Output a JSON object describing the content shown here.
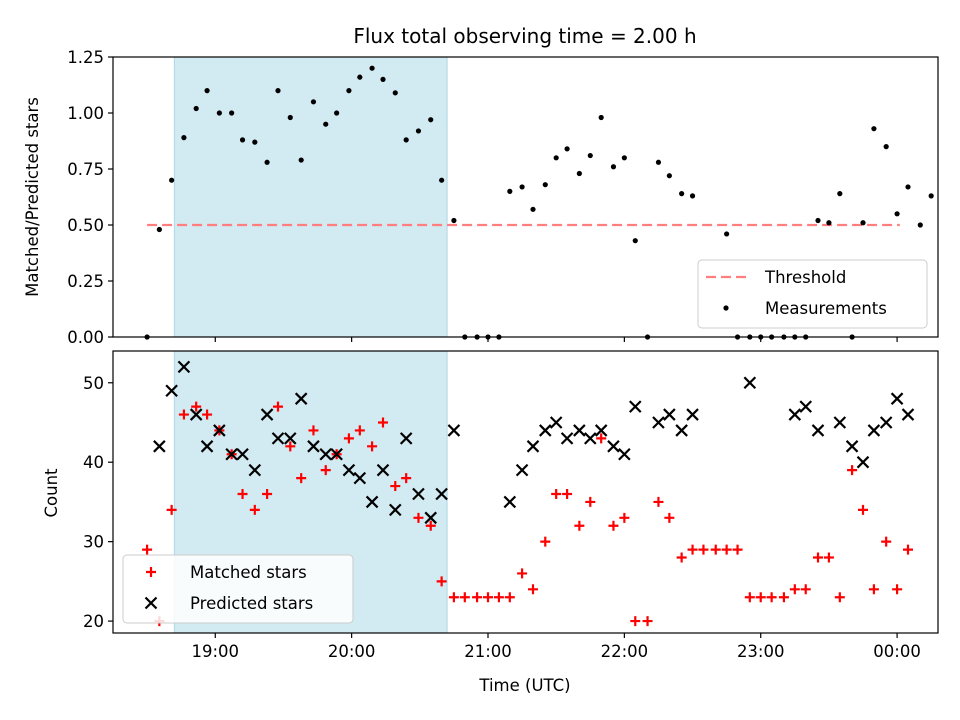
{
  "chart_data": [
    {
      "type": "scatter",
      "title": "Flux total observing time = 2.00 h",
      "xlabel": "",
      "ylabel": "Matched/Predicted stars",
      "x_unit": "hours (UTC)",
      "xlim": [
        18.25,
        24.3
      ],
      "ylim": [
        0.0,
        1.25
      ],
      "x_tick_labels": [
        "",
        "",
        "",
        "",
        "",
        ""
      ],
      "y_ticks": [
        0.0,
        0.25,
        0.5,
        0.75,
        1.0,
        1.25
      ],
      "y_tick_labels": [
        "0.00",
        "0.25",
        "0.50",
        "0.75",
        "1.00",
        "1.25"
      ],
      "shaded_region": {
        "x": [
          18.7,
          20.7
        ],
        "color": "#add8e6"
      },
      "threshold": {
        "name": "Threshold",
        "value": 0.5,
        "x": [
          18.5,
          24.02
        ],
        "color": "#ff7f7f",
        "style": "dashed"
      },
      "legend": {
        "position": "lower-right",
        "entries": [
          "Threshold",
          "Measurements"
        ]
      },
      "series": [
        {
          "name": "Measurements",
          "color": "#000000",
          "marker": "dot",
          "points": [
            [
              18.5,
              0.0
            ],
            [
              18.59,
              0.48
            ],
            [
              18.68,
              0.7
            ],
            [
              18.77,
              0.89
            ],
            [
              18.86,
              1.02
            ],
            [
              18.94,
              1.1
            ],
            [
              19.03,
              1.0
            ],
            [
              19.12,
              1.0
            ],
            [
              19.2,
              0.88
            ],
            [
              19.29,
              0.87
            ],
            [
              19.38,
              0.78
            ],
            [
              19.46,
              1.1
            ],
            [
              19.55,
              0.98
            ],
            [
              19.63,
              0.79
            ],
            [
              19.72,
              1.05
            ],
            [
              19.81,
              0.95
            ],
            [
              19.89,
              1.0
            ],
            [
              19.98,
              1.1
            ],
            [
              20.06,
              1.16
            ],
            [
              20.15,
              1.2
            ],
            [
              20.23,
              1.15
            ],
            [
              20.32,
              1.09
            ],
            [
              20.4,
              0.88
            ],
            [
              20.49,
              0.92
            ],
            [
              20.58,
              0.97
            ],
            [
              20.66,
              0.7
            ],
            [
              20.75,
              0.52
            ],
            [
              20.83,
              0.0
            ],
            [
              20.92,
              0.0
            ],
            [
              21.0,
              0.0
            ],
            [
              21.08,
              0.0
            ],
            [
              21.16,
              0.65
            ],
            [
              21.25,
              0.67
            ],
            [
              21.33,
              0.57
            ],
            [
              21.42,
              0.68
            ],
            [
              21.5,
              0.8
            ],
            [
              21.58,
              0.84
            ],
            [
              21.67,
              0.73
            ],
            [
              21.75,
              0.81
            ],
            [
              21.83,
              0.98
            ],
            [
              21.92,
              0.76
            ],
            [
              22.0,
              0.8
            ],
            [
              22.08,
              0.43
            ],
            [
              22.17,
              0.0
            ],
            [
              22.25,
              0.78
            ],
            [
              22.33,
              0.72
            ],
            [
              22.42,
              0.64
            ],
            [
              22.5,
              0.63
            ],
            [
              22.83,
              0.0
            ],
            [
              22.92,
              0.0
            ],
            [
              23.0,
              0.0
            ],
            [
              23.08,
              0.0
            ],
            [
              23.17,
              0.0
            ],
            [
              23.25,
              0.0
            ],
            [
              23.33,
              0.0
            ],
            [
              23.42,
              0.52
            ],
            [
              23.5,
              0.51
            ],
            [
              23.58,
              0.64
            ],
            [
              23.67,
              0.0
            ],
            [
              23.75,
              0.51
            ],
            [
              23.83,
              0.93
            ],
            [
              23.92,
              0.85
            ],
            [
              24.0,
              0.55
            ],
            [
              24.08,
              0.67
            ],
            [
              24.17,
              0.5
            ],
            [
              24.25,
              0.63
            ],
            [
              22.75,
              0.46
            ]
          ]
        }
      ]
    },
    {
      "type": "scatter",
      "title": "",
      "xlabel": "Time (UTC)",
      "ylabel": "Count",
      "x_unit": "hours (UTC)",
      "xlim": [
        18.25,
        24.3
      ],
      "ylim": [
        18.5,
        54.0
      ],
      "x_ticks": [
        19,
        20,
        21,
        22,
        23,
        24
      ],
      "x_tick_labels": [
        "19:00",
        "20:00",
        "21:00",
        "22:00",
        "23:00",
        "00:00"
      ],
      "y_ticks": [
        20,
        30,
        40,
        50
      ],
      "y_tick_labels": [
        "20",
        "30",
        "40",
        "50"
      ],
      "shaded_region": {
        "x": [
          18.7,
          20.7
        ],
        "color": "#add8e6"
      },
      "legend": {
        "position": "lower-left",
        "entries": [
          "Matched stars",
          "Predicted stars"
        ]
      },
      "series": [
        {
          "name": "Matched stars",
          "color": "#ff0000",
          "marker": "plus",
          "points": [
            [
              18.5,
              29
            ],
            [
              18.59,
              20
            ],
            [
              18.68,
              34
            ],
            [
              18.77,
              46
            ],
            [
              18.86,
              47
            ],
            [
              18.94,
              46
            ],
            [
              19.03,
              44
            ],
            [
              19.12,
              41
            ],
            [
              19.2,
              36
            ],
            [
              19.29,
              34
            ],
            [
              19.38,
              36
            ],
            [
              19.46,
              47
            ],
            [
              19.55,
              42
            ],
            [
              19.63,
              38
            ],
            [
              19.72,
              44
            ],
            [
              19.81,
              39
            ],
            [
              19.89,
              41
            ],
            [
              19.98,
              43
            ],
            [
              20.06,
              44
            ],
            [
              20.15,
              42
            ],
            [
              20.23,
              45
            ],
            [
              20.32,
              37
            ],
            [
              20.4,
              38
            ],
            [
              20.49,
              33
            ],
            [
              20.58,
              32
            ],
            [
              20.66,
              25
            ],
            [
              20.75,
              23
            ],
            [
              20.83,
              23
            ],
            [
              20.92,
              23
            ],
            [
              21.0,
              23
            ],
            [
              21.08,
              23
            ],
            [
              21.16,
              23
            ],
            [
              21.25,
              26
            ],
            [
              21.33,
              24
            ],
            [
              21.42,
              30
            ],
            [
              21.5,
              36
            ],
            [
              21.58,
              36
            ],
            [
              21.67,
              32
            ],
            [
              21.75,
              35
            ],
            [
              21.83,
              43
            ],
            [
              21.92,
              32
            ],
            [
              22.0,
              33
            ],
            [
              22.08,
              20
            ],
            [
              22.17,
              20
            ],
            [
              22.25,
              35
            ],
            [
              22.33,
              33
            ],
            [
              22.42,
              28
            ],
            [
              22.5,
              29
            ],
            [
              22.58,
              29
            ],
            [
              22.67,
              29
            ],
            [
              22.75,
              29
            ],
            [
              22.83,
              29
            ],
            [
              22.92,
              23
            ],
            [
              23.0,
              23
            ],
            [
              23.08,
              23
            ],
            [
              23.17,
              23
            ],
            [
              23.25,
              24
            ],
            [
              23.33,
              24
            ],
            [
              23.42,
              28
            ],
            [
              23.5,
              28
            ],
            [
              23.58,
              23
            ],
            [
              23.67,
              39
            ],
            [
              23.75,
              34
            ],
            [
              23.83,
              24
            ],
            [
              23.92,
              30
            ],
            [
              24.0,
              24
            ],
            [
              24.08,
              29
            ]
          ]
        },
        {
          "name": "Predicted stars",
          "color": "#000000",
          "marker": "x",
          "points": [
            [
              18.59,
              42
            ],
            [
              18.68,
              49
            ],
            [
              18.77,
              52
            ],
            [
              18.86,
              46
            ],
            [
              18.94,
              42
            ],
            [
              19.03,
              44
            ],
            [
              19.12,
              41
            ],
            [
              19.2,
              41
            ],
            [
              19.29,
              39
            ],
            [
              19.38,
              46
            ],
            [
              19.46,
              43
            ],
            [
              19.55,
              43
            ],
            [
              19.63,
              48
            ],
            [
              19.72,
              42
            ],
            [
              19.81,
              41
            ],
            [
              19.89,
              41
            ],
            [
              19.98,
              39
            ],
            [
              20.06,
              38
            ],
            [
              20.15,
              35
            ],
            [
              20.23,
              39
            ],
            [
              20.32,
              34
            ],
            [
              20.4,
              43
            ],
            [
              20.49,
              36
            ],
            [
              20.58,
              33
            ],
            [
              20.66,
              36
            ],
            [
              20.75,
              44
            ],
            [
              21.16,
              35
            ],
            [
              21.25,
              39
            ],
            [
              21.33,
              42
            ],
            [
              21.42,
              44
            ],
            [
              21.5,
              45
            ],
            [
              21.58,
              43
            ],
            [
              21.67,
              44
            ],
            [
              21.75,
              43
            ],
            [
              21.83,
              44
            ],
            [
              21.92,
              42
            ],
            [
              22.0,
              41
            ],
            [
              22.08,
              47
            ],
            [
              22.25,
              45
            ],
            [
              22.33,
              46
            ],
            [
              22.42,
              44
            ],
            [
              22.5,
              46
            ],
            [
              22.92,
              50
            ],
            [
              23.25,
              46
            ],
            [
              23.33,
              47
            ],
            [
              23.42,
              44
            ],
            [
              23.58,
              45
            ],
            [
              23.67,
              42
            ],
            [
              23.75,
              40
            ],
            [
              23.83,
              44
            ],
            [
              23.92,
              45
            ],
            [
              24.0,
              48
            ],
            [
              24.08,
              46
            ]
          ]
        }
      ]
    }
  ]
}
